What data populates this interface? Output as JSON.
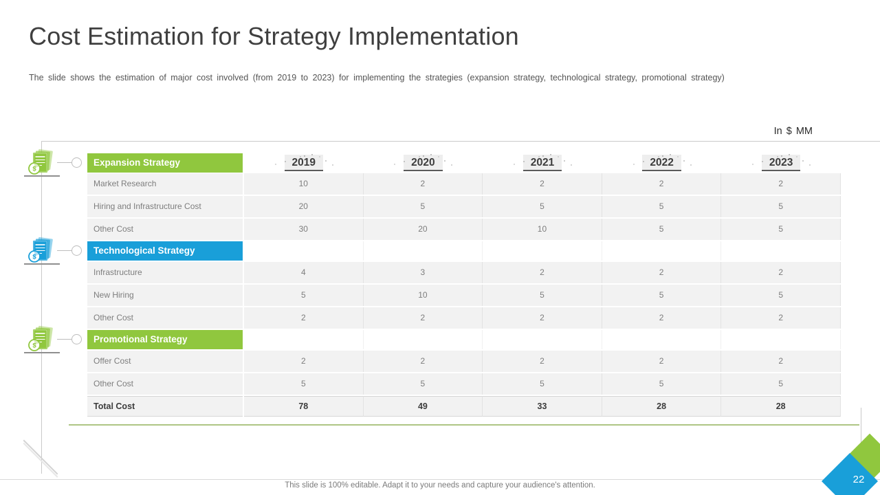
{
  "slide": {
    "title": "Cost Estimation for Strategy Implementation",
    "subtitle": "The slide shows the estimation of major cost involved  (from 2019 to 2023) for implementing the strategies (expansion strategy, technological strategy, promotional strategy)",
    "unit_label": "In $ MM",
    "footer_note": "This slide is 100% editable. Adapt it to your needs and capture your audience's attention.",
    "page_number": "22"
  },
  "colors": {
    "green": "#90c73e",
    "blue": "#199fd9",
    "underline_green": "#aec584"
  },
  "icons": [
    {
      "name": "expansion-strategy-doc-icon",
      "color_key": "green"
    },
    {
      "name": "technological-strategy-doc-icon",
      "color_key": "blue"
    },
    {
      "name": "promotional-strategy-doc-icon",
      "color_key": "green"
    }
  ],
  "chart_data": {
    "type": "table",
    "title": "Cost Estimation for Strategy Implementation",
    "unit": "In $ MM",
    "years": [
      "2019",
      "2020",
      "2021",
      "2022",
      "2023"
    ],
    "sections": [
      {
        "name": "Expansion Strategy",
        "color_key": "green",
        "rows": [
          {
            "label": "Market Research",
            "values": [
              10,
              2,
              2,
              2,
              2
            ]
          },
          {
            "label": "Hiring and Infrastructure Cost",
            "values": [
              20,
              5,
              5,
              5,
              5
            ]
          },
          {
            "label": "Other Cost",
            "values": [
              30,
              20,
              10,
              5,
              5
            ]
          }
        ]
      },
      {
        "name": "Technological Strategy",
        "color_key": "blue",
        "rows": [
          {
            "label": "Infrastructure",
            "values": [
              4,
              3,
              2,
              2,
              2
            ]
          },
          {
            "label": "New Hiring",
            "values": [
              5,
              10,
              5,
              5,
              5
            ]
          },
          {
            "label": "Other Cost",
            "values": [
              2,
              2,
              2,
              2,
              2
            ]
          }
        ]
      },
      {
        "name": "Promotional Strategy",
        "color_key": "green",
        "rows": [
          {
            "label": "Offer Cost",
            "values": [
              2,
              2,
              2,
              2,
              2
            ]
          },
          {
            "label": "Other Cost",
            "values": [
              5,
              5,
              5,
              5,
              5
            ]
          }
        ]
      }
    ],
    "total_row": {
      "label": "Total Cost",
      "values": [
        78,
        49,
        33,
        28,
        28
      ]
    }
  }
}
